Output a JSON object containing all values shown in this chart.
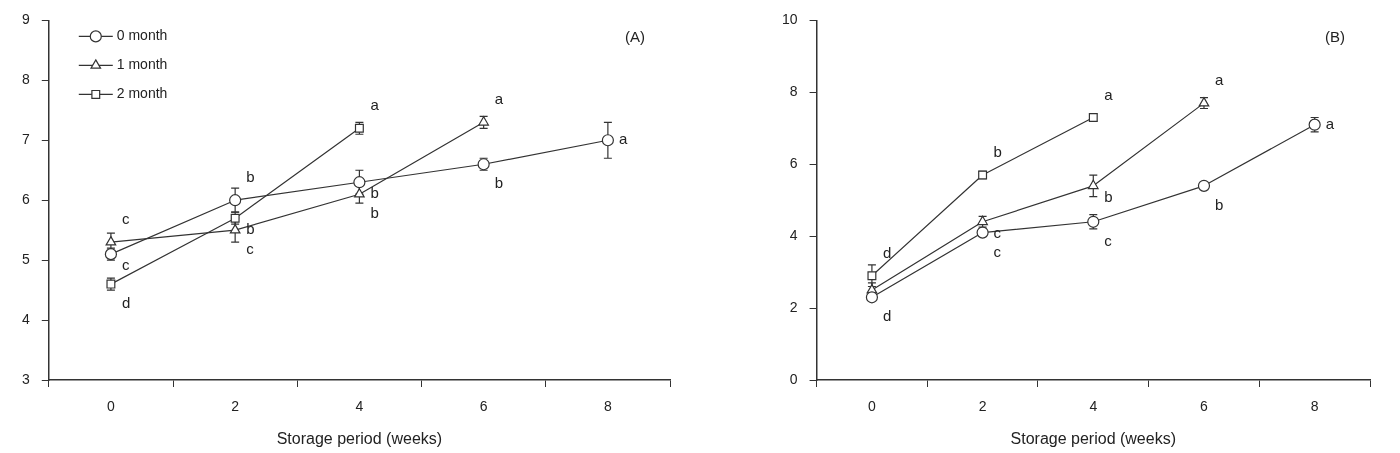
{
  "chart_data": [
    {
      "type": "line",
      "xlabel": "Storage period (weeks)",
      "xlim": [
        -1,
        9
      ],
      "xticks": [
        {
          "value": -1,
          "label": null
        },
        0,
        {
          "value": 1,
          "label": null
        },
        2,
        {
          "value": 3,
          "label": null
        },
        4,
        {
          "value": 5,
          "label": null
        },
        6,
        {
          "value": 7,
          "label": null
        },
        8,
        {
          "value": 9,
          "label": null
        }
      ],
      "ylim": [
        3,
        9
      ],
      "yticks": [
        3,
        4,
        5,
        6,
        7,
        8,
        9
      ],
      "grid": false,
      "legend": "top left",
      "line_style": "solid",
      "series": [
        {
          "name": "0 month",
          "color": "#333333",
          "marker": "circle",
          "x": [
            0,
            2,
            4,
            6,
            8
          ],
          "values": [
            5.1,
            6.0,
            6.3,
            6.6,
            7.0
          ],
          "errors": [
            0.1,
            0.2,
            0.2,
            0.1,
            0.3
          ]
        },
        {
          "name": "1 month",
          "color": "#333333",
          "marker": "triangle",
          "x": [
            0,
            2,
            4,
            6
          ],
          "values": [
            5.3,
            5.5,
            6.1,
            7.3
          ],
          "errors": [
            0.15,
            0.2,
            0.15,
            0.1
          ]
        },
        {
          "name": "2 month",
          "color": "#333333",
          "marker": "square",
          "x": [
            0,
            2,
            4
          ],
          "values": [
            4.6,
            5.7,
            7.2
          ],
          "errors": [
            0.1,
            0.1,
            0.1
          ]
        }
      ],
      "annotations": [
        "(A)",
        {
          "text": "c",
          "x": 0,
          "y": 5.3
        },
        {
          "text": "c",
          "x": 0,
          "y": 5.1
        },
        {
          "text": "d",
          "x": 0,
          "y": 4.6
        },
        {
          "text": "b",
          "x": 2,
          "y": 6.0
        },
        {
          "text": "b",
          "x": 2,
          "y": 5.7
        },
        {
          "text": "c",
          "x": 2,
          "y": 5.5
        },
        {
          "text": "a",
          "x": 4,
          "y": 7.2
        },
        {
          "text": "b",
          "x": 4,
          "y": 6.3
        },
        {
          "text": "b",
          "x": 4,
          "y": 6.1
        },
        {
          "text": "a",
          "x": 6,
          "y": 7.3
        },
        {
          "text": "b",
          "x": 6,
          "y": 6.6
        },
        {
          "text": "a",
          "x": 8,
          "y": 7.0
        }
      ]
    },
    {
      "type": "line",
      "xlabel": "Storage period (weeks)",
      "xlim": [
        -1,
        9
      ],
      "xticks": [
        {
          "value": -1,
          "label": null
        },
        0,
        {
          "value": 1,
          "label": null
        },
        2,
        {
          "value": 3,
          "label": null
        },
        4,
        {
          "value": 5,
          "label": null
        },
        6,
        {
          "value": 7,
          "label": null
        },
        8,
        {
          "value": 9,
          "label": null
        }
      ],
      "ylim": [
        0,
        10
      ],
      "yticks": [
        0,
        2,
        4,
        6,
        8,
        10
      ],
      "grid": false,
      "line_style": "solid",
      "series": [
        {
          "color": "#333333",
          "marker": "circle",
          "x": [
            0,
            2,
            4,
            6,
            8
          ],
          "values": [
            2.3,
            4.1,
            4.4,
            5.4,
            7.1
          ],
          "errors": [
            null,
            null,
            0.2,
            null,
            0.2
          ]
        },
        {
          "color": "#333333",
          "marker": "triangle",
          "x": [
            0,
            2,
            4,
            6
          ],
          "values": [
            2.5,
            4.4,
            5.4,
            7.7
          ],
          "errors": [
            0.2,
            0.15,
            0.3,
            0.15
          ]
        },
        {
          "color": "#333333",
          "marker": "square",
          "x": [
            0,
            2,
            4
          ],
          "values": [
            2.9,
            5.7,
            7.3
          ],
          "errors": [
            0.3,
            0.1,
            0.1
          ]
        }
      ],
      "annotations": [
        "(B)",
        {
          "text": "d",
          "x": 0,
          "y": 2.9
        },
        {
          "text": "d",
          "x": 0,
          "y": 2.3
        },
        {
          "text": "b",
          "x": 2,
          "y": 5.7
        },
        {
          "text": "c",
          "x": 2,
          "y": 4.4
        },
        {
          "text": "c",
          "x": 2,
          "y": 4.1
        },
        {
          "text": "a",
          "x": 4,
          "y": 7.3
        },
        {
          "text": "b",
          "x": 4,
          "y": 5.4
        },
        {
          "text": "c",
          "x": 4,
          "y": 4.4
        },
        {
          "text": "a",
          "x": 6,
          "y": 7.7
        },
        {
          "text": "b",
          "x": 6,
          "y": 5.4
        },
        {
          "text": "a",
          "x": 8,
          "y": 7.1
        }
      ]
    }
  ]
}
